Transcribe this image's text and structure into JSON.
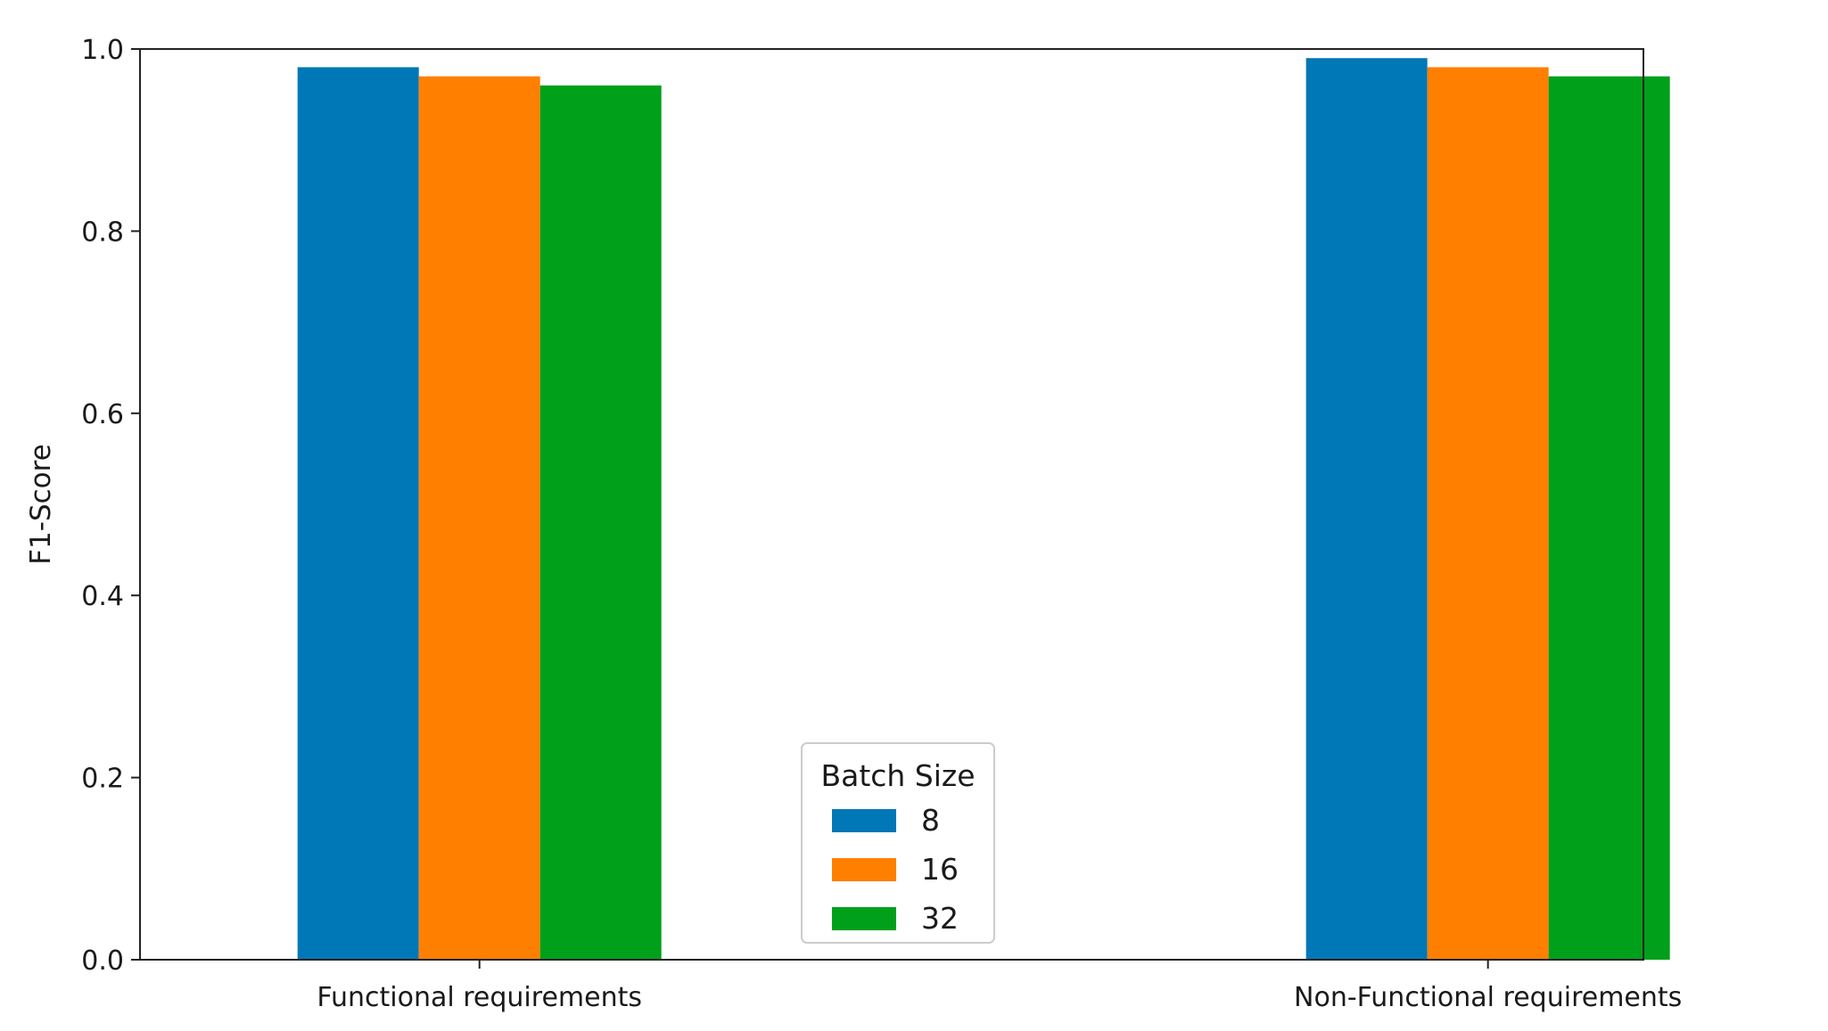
{
  "chart_data": {
    "type": "bar",
    "ylabel": "F1-Score",
    "ylim": [
      0,
      1.0
    ],
    "yticks": [
      "0.0",
      "0.2",
      "0.4",
      "0.6",
      "0.8",
      "1.0"
    ],
    "categories": [
      "Functional requirements",
      "Non-Functional requirements"
    ],
    "legend": {
      "title": "Batch Size",
      "placement": "lower-center"
    },
    "series": [
      {
        "name": "8",
        "color": "#0077b6",
        "values": [
          0.98,
          0.99
        ]
      },
      {
        "name": "16",
        "color": "#ff7f00",
        "values": [
          0.97,
          0.98
        ]
      },
      {
        "name": "32",
        "color": "#00a01a",
        "values": [
          0.96,
          0.97
        ]
      }
    ],
    "grid": false
  }
}
